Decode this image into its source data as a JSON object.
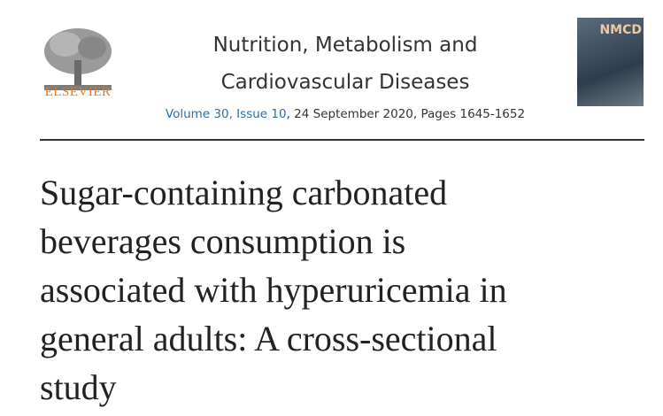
{
  "header": {
    "publisher": "ELSEVIER",
    "cover_label": "NMCD",
    "journal_lines": [
      "Nutrition, Metabolism and",
      "Cardiovascular Diseases"
    ],
    "volume_link": "Volume 30, Issue 10",
    "volume_rest": ", 24 September 2020, Pages 1645-1652"
  },
  "article": {
    "title_lines": [
      "Sugar-containing carbonated",
      "beverages consumption is",
      "associated with hyperuricemia in",
      "general adults: A cross-sectional",
      "study"
    ]
  }
}
